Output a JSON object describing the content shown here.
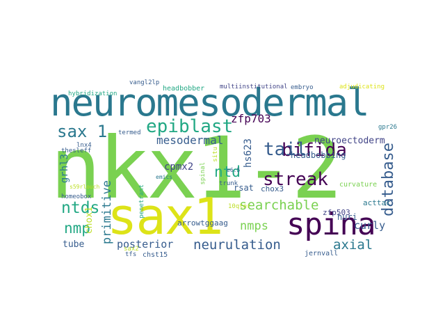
{
  "palette": {
    "yellow": "#bddf26",
    "green": "#7ad151",
    "teal": "#22a884",
    "blue_teal": "#2a788e",
    "blue": "#365c8d",
    "indigo": "#414487",
    "purple": "#440154",
    "light_yellow": "#dde318"
  },
  "words": [
    {
      "text": "nkx1-2",
      "color": "#7ad151"
    },
    {
      "text": "neuromesodermal",
      "color": "#2a788e"
    },
    {
      "text": "sax1",
      "color": "#dde318"
    },
    {
      "text": "spina",
      "color": "#440154"
    },
    {
      "text": "epiblast",
      "color": "#22a884"
    },
    {
      "text": "bifida",
      "color": "#440154"
    },
    {
      "text": "streak",
      "color": "#440154"
    },
    {
      "text": "tail",
      "color": "#365c8d"
    },
    {
      "text": "sax 1",
      "color": "#2a788e"
    },
    {
      "text": "database",
      "color": "#365c8d"
    },
    {
      "text": "ntds",
      "color": "#22a884"
    },
    {
      "text": "searchable",
      "color": "#7ad151"
    },
    {
      "text": "nmp",
      "color": "#22a884"
    },
    {
      "text": "ntd",
      "color": "#22a884"
    },
    {
      "text": "nmps",
      "color": "#7ad151"
    },
    {
      "text": "neurulation",
      "color": "#365c8d"
    },
    {
      "text": "axial",
      "color": "#2a788e"
    },
    {
      "text": "posterior",
      "color": "#365c8d"
    },
    {
      "text": "primitive",
      "color": "#2a788e"
    },
    {
      "text": "mesodermal",
      "color": "#365c8d"
    },
    {
      "text": "zfp703",
      "color": "#440154"
    },
    {
      "text": "neuroectoderm",
      "color": "#414487"
    },
    {
      "text": "cpmx2",
      "color": "#414487"
    },
    {
      "text": "headbobbing",
      "color": "#365c8d"
    },
    {
      "text": "hs623",
      "color": "#365c8d"
    },
    {
      "text": "curly",
      "color": "#365c8d"
    },
    {
      "text": "tube",
      "color": "#365c8d"
    },
    {
      "text": "grhl3",
      "color": "#2a788e"
    },
    {
      "text": "chox1",
      "color": "#bddf26"
    },
    {
      "text": "arrowtggaag",
      "color": "#365c8d"
    },
    {
      "text": "rsat",
      "color": "#365c8d"
    },
    {
      "text": "chox3",
      "color": "#365c8d"
    },
    {
      "text": "huri",
      "color": "#365c8d"
    },
    {
      "text": "curvature",
      "color": "#7ad151"
    },
    {
      "text": "acttac",
      "color": "#2a788e"
    },
    {
      "text": "zfp503",
      "color": "#414487"
    },
    {
      "text": "jernvall",
      "color": "#365c8d"
    },
    {
      "text": "chst15",
      "color": "#365c8d"
    },
    {
      "text": "headbobber",
      "color": "#22a884"
    },
    {
      "text": "multiinstitutional",
      "color": "#414487"
    },
    {
      "text": "embryo",
      "color": "#365c8d"
    },
    {
      "text": "adjudicating",
      "color": "#dde318"
    },
    {
      "text": "hybridization",
      "color": "#22a884"
    },
    {
      "text": "vangl2lp",
      "color": "#365c8d"
    },
    {
      "text": "termed",
      "color": "#365c8d"
    },
    {
      "text": "lnx4",
      "color": "#365c8d"
    },
    {
      "text": "thesleff",
      "color": "#365c8d"
    },
    {
      "text": "homeobox",
      "color": "#365c8d"
    },
    {
      "text": "e6.5",
      "color": "#365c8d"
    },
    {
      "text": "trunk",
      "color": "#365c8d"
    },
    {
      "text": "gpr26",
      "color": "#2a788e"
    },
    {
      "text": "10qter",
      "color": "#bddf26"
    },
    {
      "text": "penetrant",
      "color": "#22a884"
    },
    {
      "text": "tfs",
      "color": "#365c8d"
    },
    {
      "text": "spinal",
      "color": "#7ad151"
    },
    {
      "text": "situ",
      "color": "#bddf26"
    },
    {
      "text": "s59rlouch",
      "color": "#bddf26"
    },
    {
      "text": "emics",
      "color": "#2a788e"
    },
    {
      "text": "sax2",
      "color": "#bddf26"
    }
  ]
}
